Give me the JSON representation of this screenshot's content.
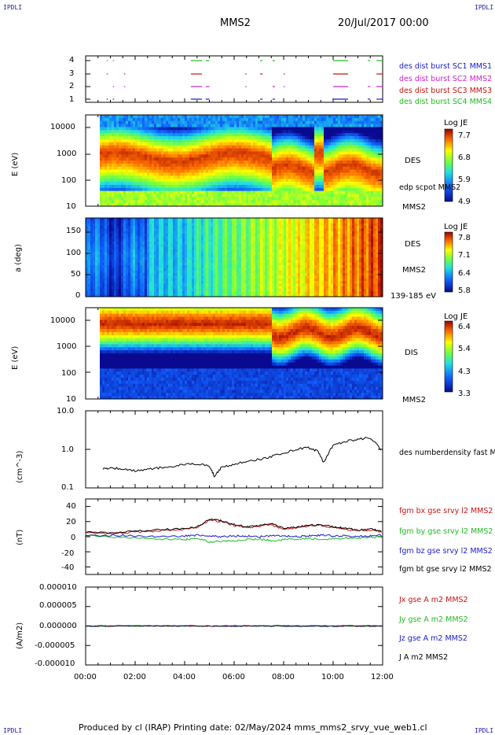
{
  "header": {
    "corner_label": "IPDLI",
    "spacecraft": "MMS2",
    "datetime": "20/Jul/2017 00:00"
  },
  "footer": {
    "text": "Produced by cl (IRAP)   Printing date: 02/May/2024   mms_mms2_srvy_vue_web1.cl"
  },
  "chart_data": [
    {
      "type": "line",
      "panel": "burst-availability",
      "yticks": [
        "1",
        "2",
        "3",
        "4"
      ],
      "ylim": [
        0.5,
        4.5
      ],
      "legend": [
        {
          "name": "des dist burst SC1 MMS1",
          "color": "#1a1acc"
        },
        {
          "name": "des dist burst SC2 MMS2",
          "color": "#cc22cc"
        },
        {
          "name": "des dist burst SC3 MMS3",
          "color": "#cc1111"
        },
        {
          "name": "des dist burst SC4 MMS4",
          "color": "#22bb22"
        }
      ],
      "intervals_hours": [
        [
          0.85,
          0.9
        ],
        [
          1.1,
          1.15
        ],
        [
          1.55,
          1.6
        ],
        [
          4.25,
          4.7
        ],
        [
          4.85,
          5.0
        ],
        [
          6.45,
          6.5
        ],
        [
          7.05,
          7.15
        ],
        [
          7.55,
          7.65
        ],
        [
          8.0,
          8.05
        ],
        [
          10.0,
          10.6
        ],
        [
          11.4,
          11.5
        ],
        [
          11.75,
          12.0
        ]
      ]
    },
    {
      "type": "heatmap",
      "panel": "des-energy-spectrogram",
      "ylabel": "E (eV)",
      "yscale": "log",
      "yticks": [
        "10",
        "100",
        "1000",
        "10000"
      ],
      "ylim": [
        10,
        30000
      ],
      "label": "DES",
      "annotation": "edp scpot MMS2",
      "sublabel": "MMS2",
      "colorbar": {
        "title": "Log JE",
        "ticks": [
          "7.7",
          "6.8",
          "5.9",
          "4.9"
        ],
        "range": [
          4.9,
          7.7
        ]
      }
    },
    {
      "type": "heatmap",
      "panel": "des-pitch-angle",
      "ylabel": "a (deg)",
      "yticks": [
        "0",
        "50",
        "100",
        "150"
      ],
      "ylim": [
        0,
        180
      ],
      "label": "DES",
      "sublabel": "MMS2",
      "energy_range": "139-185 eV",
      "colorbar": {
        "title": "Log JE",
        "ticks": [
          "7.8",
          "7.1",
          "6.4",
          "5.8"
        ],
        "range": [
          5.8,
          7.8
        ]
      }
    },
    {
      "type": "heatmap",
      "panel": "dis-energy-spectrogram",
      "ylabel": "E (eV)",
      "yscale": "log",
      "yticks": [
        "10",
        "100",
        "1000",
        "10000"
      ],
      "ylim": [
        10,
        30000
      ],
      "label": "DIS",
      "sublabel": "MMS2",
      "colorbar": {
        "title": "Log JE",
        "ticks": [
          "6.4",
          "5.4",
          "4.3",
          "3.3"
        ],
        "range": [
          3.3,
          6.4
        ]
      }
    },
    {
      "type": "line",
      "panel": "number-density",
      "ylabel": "(cm^-3)",
      "yscale": "log",
      "yticks": [
        "0.1",
        "1.0",
        "10.0"
      ],
      "ylim": [
        0.1,
        10
      ],
      "series": [
        {
          "name": "des numberdensity fast M",
          "color": "#000000",
          "x": [
            0.7,
            1.0,
            1.5,
            2.0,
            2.5,
            3.0,
            3.5,
            4.0,
            4.5,
            5.0,
            5.2,
            5.5,
            6.0,
            6.5,
            7.0,
            7.5,
            8.0,
            8.5,
            9.0,
            9.4,
            9.6,
            10.0,
            10.5,
            11.0,
            11.5,
            12.0
          ],
          "y": [
            0.3,
            0.34,
            0.3,
            0.28,
            0.3,
            0.33,
            0.36,
            0.4,
            0.42,
            0.38,
            0.2,
            0.35,
            0.4,
            0.5,
            0.55,
            0.65,
            0.8,
            1.0,
            1.1,
            0.9,
            0.45,
            1.3,
            1.6,
            1.8,
            2.0,
            0.9
          ]
        }
      ]
    },
    {
      "type": "line",
      "panel": "magnetic-field",
      "ylabel": "(nT)",
      "yticks": [
        "-40",
        "-20",
        "0",
        "20",
        "40"
      ],
      "ylim": [
        -50,
        50
      ],
      "series": [
        {
          "name": "fgm bx gse srvy l2 MMS2",
          "color": "#cc1111",
          "x": [
            0,
            1,
            2,
            3,
            4,
            4.5,
            5,
            5.5,
            6,
            6.5,
            7,
            7.5,
            8,
            8.5,
            9,
            9.5,
            10,
            10.5,
            11,
            11.5,
            12
          ],
          "y": [
            5,
            4,
            6,
            8,
            10,
            12,
            22,
            20,
            15,
            12,
            14,
            16,
            10,
            12,
            14,
            15,
            12,
            10,
            8,
            9,
            6
          ]
        },
        {
          "name": "fgm by gse srvy l2 MMS2",
          "color": "#22bb22",
          "x": [
            0,
            1,
            2,
            3,
            4,
            4.5,
            5,
            5.5,
            6,
            6.5,
            7,
            7.5,
            8,
            8.5,
            9,
            9.5,
            10,
            10.5,
            11,
            11.5,
            12
          ],
          "y": [
            2,
            0,
            -2,
            -3,
            -4,
            -2,
            -7,
            -6,
            -5,
            -4,
            -3,
            -5,
            -4,
            -3,
            -2,
            -4,
            -3,
            -2,
            -2,
            -1,
            0
          ]
        },
        {
          "name": "fgm bz gse srvy l2 MMS2",
          "color": "#1a1acc",
          "x": [
            0,
            1,
            2,
            3,
            4,
            4.5,
            5,
            5.5,
            6,
            6.5,
            7,
            7.5,
            8,
            8.5,
            9,
            9.5,
            10,
            10.5,
            11,
            11.5,
            12
          ],
          "y": [
            1,
            2,
            1,
            0,
            1,
            2,
            1,
            0,
            1,
            1,
            0,
            1,
            1,
            0,
            1,
            2,
            1,
            1,
            0,
            1,
            2
          ]
        },
        {
          "name": "fgm bt gse srvy l2 MMS2",
          "color": "#000000",
          "x": [
            0,
            1,
            2,
            3,
            4,
            4.5,
            5,
            5.5,
            6,
            6.5,
            7,
            7.5,
            8,
            8.5,
            9,
            9.5,
            10,
            10.5,
            11,
            11.5,
            12
          ],
          "y": [
            6,
            5,
            7,
            9,
            11,
            13,
            23,
            21,
            16,
            13,
            15,
            17,
            11,
            13,
            15,
            16,
            13,
            11,
            9,
            10,
            7
          ]
        }
      ]
    },
    {
      "type": "line",
      "panel": "current-density",
      "ylabel": "(A/m2)",
      "xlabel": "",
      "yticks": [
        "-0.000010",
        "-0.000005",
        "0.000000",
        "0.000005",
        "0.000010"
      ],
      "ylim": [
        -1e-05,
        1e-05
      ],
      "xticks": [
        "00:00",
        "02:00",
        "04:00",
        "06:00",
        "08:00",
        "10:00",
        "12:00"
      ],
      "xlim_hours": [
        0,
        12
      ],
      "series": [
        {
          "name": "Jx gse A m2 MMS2",
          "color": "#cc1111"
        },
        {
          "name": "Jy gse A m2 MMS2",
          "color": "#22bb22"
        },
        {
          "name": "Jz gse A m2 MMS2",
          "color": "#1a1acc"
        },
        {
          "name": "J A m2 MMS2",
          "color": "#000000"
        }
      ]
    }
  ]
}
